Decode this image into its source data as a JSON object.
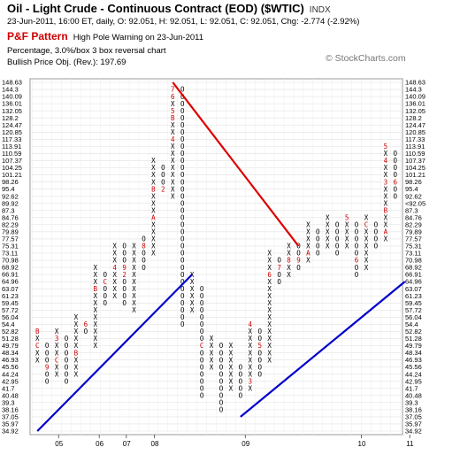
{
  "header": {
    "title": "Oil - Light Crude - Continuous Contract (EOD) ($WTIC)",
    "exchange": "INDX",
    "quote_line": "23-Jun-2011, 16:00 ET, daily, O: 92.051, H: 92.051, L: 92.051, C: 92.051, Chg: -2.774 (-2.92%)",
    "chart_type": "P&F Pattern",
    "pattern_note": "High Pole Warning on 23-Jun-2011",
    "scale_note": "Percentage, 3.0%/box 3 box reversal chart",
    "price_objective": "Bullish Price Obj. (Rev.): 197.69",
    "watermark": "© StockCharts.com"
  },
  "chart_data": {
    "type": "point-and-figure",
    "title": "Oil - Light Crude - Continuous Contract (EOD) ($WTIC)",
    "box_size_pct": 3.0,
    "reversal_boxes": 3,
    "y_scale": "log",
    "y_ticks_left": [
      "148.63",
      "144.3",
      "140.09",
      "136.01",
      "132.05",
      "128.2",
      "124.47",
      "120.85",
      "117.33",
      "113.91",
      "110.59",
      "107.37",
      "104.25",
      "101.21",
      "98.26",
      "95.4",
      "92.62",
      "89.92",
      "87.3",
      "84.76",
      "82.29",
      "79.89",
      "77.57",
      "75.31",
      "73.11",
      "70.98",
      "68.92",
      "66.91",
      "64.96",
      "63.07",
      "61.23",
      "59.45",
      "57.72",
      "56.04",
      "54.4",
      "52.82",
      "51.28",
      "49.79",
      "48.34",
      "46.93",
      "45.56",
      "44.24",
      "42.95",
      "41.7",
      "40.48",
      "39.3",
      "38.16",
      "37.05",
      "35.97",
      "34.92"
    ],
    "y_ticks_right": [
      "148.63",
      "144.3",
      "140.09",
      "136.01",
      "132.05",
      "128.2",
      "124.47",
      "120.85",
      "117.33",
      "113.91",
      "110.59",
      "107.37",
      "104.25",
      "101.21",
      "98.26",
      "95.4",
      "92.62",
      "<92.05",
      "87.3",
      "84.76",
      "82.29",
      "79.89",
      "77.57",
      "75.31",
      "73.11",
      "70.98",
      "68.92",
      "66.91",
      "64.96",
      "63.07",
      "61.23",
      "59.45",
      "57.72",
      "56.04",
      "54.4",
      "52.82",
      "51.28",
      "49.79",
      "48.34",
      "46.93",
      "45.56",
      "44.24",
      "42.95",
      "41.7",
      "40.48",
      "39.3",
      "38.16",
      "37.05",
      "35.97",
      "34.92"
    ],
    "x_year_labels": [
      "05",
      "06",
      "07",
      "08",
      "09",
      "10",
      "11"
    ],
    "current_price": 92.05,
    "columns": [
      {
        "type": "X",
        "low": 47.0,
        "high": 53.0,
        "marks": {
          "49.79": "C",
          "52.82": "B"
        }
      },
      {
        "type": "O",
        "low": 42.95,
        "high": 50.0,
        "marks": {
          "45.56": "9"
        }
      },
      {
        "type": "X",
        "low": 44.24,
        "high": 53.0,
        "marks": {
          "46.93": "C",
          "51.28": "3"
        }
      },
      {
        "type": "O",
        "low": 42.95,
        "high": 51.28,
        "marks": {}
      },
      {
        "type": "X",
        "low": 44.24,
        "high": 56.04,
        "marks": {
          "48.34": "B"
        }
      },
      {
        "type": "O",
        "low": 52.82,
        "high": 54.4,
        "marks": {
          "54.40": "6"
        }
      },
      {
        "type": "X",
        "low": 49.79,
        "high": 68.92,
        "marks": {
          "63.07": "B"
        }
      },
      {
        "type": "O",
        "low": 59.45,
        "high": 66.91,
        "marks": {
          "64.96": "C"
        }
      },
      {
        "type": "X",
        "low": 61.23,
        "high": 75.31,
        "marks": {
          "68.92": "4"
        }
      },
      {
        "type": "O",
        "low": 59.45,
        "high": 75.31,
        "marks": {
          "68.92": "9",
          "66.91": "2"
        }
      },
      {
        "type": "X",
        "low": 57.72,
        "high": 75.31,
        "marks": {}
      },
      {
        "type": "O",
        "low": 68.92,
        "high": 77.57,
        "marks": {
          "75.31": "8"
        }
      },
      {
        "type": "X",
        "low": 73.11,
        "high": 107.37,
        "marks": {
          "95.4": "B",
          "84.76": "A"
        }
      },
      {
        "type": "O",
        "low": 95.4,
        "high": 104.25,
        "marks": {
          "95.4": "2"
        }
      },
      {
        "type": "X",
        "low": 92.62,
        "high": 146.0,
        "marks": {
          "146.0": "7",
          "140.09": "6",
          "132.05": "5",
          "128.2": "B",
          "117.33": "4"
        }
      },
      {
        "type": "O",
        "low": 54.4,
        "high": 144.3,
        "marks": {}
      },
      {
        "type": "X",
        "low": 57.72,
        "high": 66.91,
        "marks": {}
      },
      {
        "type": "O",
        "low": 40.48,
        "high": 63.07,
        "marks": {
          "49.79": "C"
        }
      },
      {
        "type": "X",
        "low": 45.56,
        "high": 51.28,
        "marks": {}
      },
      {
        "type": "O",
        "low": 38.16,
        "high": 49.79,
        "marks": {}
      },
      {
        "type": "X",
        "low": 41.7,
        "high": 49.79,
        "marks": {}
      },
      {
        "type": "O",
        "low": 40.48,
        "high": 45.56,
        "marks": {}
      },
      {
        "type": "X",
        "low": 41.7,
        "high": 54.4,
        "marks": {
          "42.95": "3",
          "54.4": "4"
        }
      },
      {
        "type": "O",
        "low": 44.24,
        "high": 52.82,
        "marks": {
          "49.79": "5"
        }
      },
      {
        "type": "X",
        "low": 46.93,
        "high": 73.11,
        "marks": {
          "66.91": "6"
        }
      },
      {
        "type": "O",
        "low": 64.96,
        "high": 70.98,
        "marks": {
          "68.92": "7"
        }
      },
      {
        "type": "X",
        "low": 66.91,
        "high": 75.31,
        "marks": {
          "70.98": "8"
        }
      },
      {
        "type": "O",
        "low": 68.92,
        "high": 75.31,
        "marks": {
          "70.98": "9"
        }
      },
      {
        "type": "X",
        "low": 70.98,
        "high": 82.29,
        "marks": {
          "73.11": "A"
        }
      },
      {
        "type": "O",
        "low": 73.11,
        "high": 79.89,
        "marks": {}
      },
      {
        "type": "X",
        "low": 75.31,
        "high": 84.76,
        "marks": {}
      },
      {
        "type": "O",
        "low": 73.11,
        "high": 82.29,
        "marks": {}
      },
      {
        "type": "X",
        "low": 75.31,
        "high": 84.76,
        "marks": {
          "84.76": "5"
        }
      },
      {
        "type": "O",
        "low": 66.91,
        "high": 82.29,
        "marks": {
          "70.98": "6"
        }
      },
      {
        "type": "X",
        "low": 68.92,
        "high": 84.76,
        "marks": {
          "82.29": "C"
        }
      },
      {
        "type": "O",
        "low": 75.31,
        "high": 82.29,
        "marks": {}
      },
      {
        "type": "X",
        "low": 77.57,
        "high": 113.91,
        "marks": {
          "113.91": "5",
          "107.37": "4",
          "98.26": "3",
          "87.3": "B",
          "79.89": "A"
        }
      },
      {
        "type": "O",
        "low": 92.05,
        "high": 110.59,
        "marks": {
          "98.26": "6"
        }
      }
    ],
    "trendlines": [
      {
        "kind": "bullish support",
        "color": "#0000cc",
        "from": {
          "col": 0,
          "price": 34.92
        },
        "to": {
          "col": 16,
          "price": 66.91
        }
      },
      {
        "kind": "bearish resistance",
        "color": "#dd0000",
        "from": {
          "col": 14,
          "price": 148.63
        },
        "to": {
          "col": 27,
          "price": 75.31
        }
      },
      {
        "kind": "bullish support",
        "color": "#0000cc",
        "from": {
          "col": 21,
          "price": 37.05
        },
        "to": {
          "col": 38,
          "price": 64.96
        }
      }
    ],
    "grid": true
  }
}
